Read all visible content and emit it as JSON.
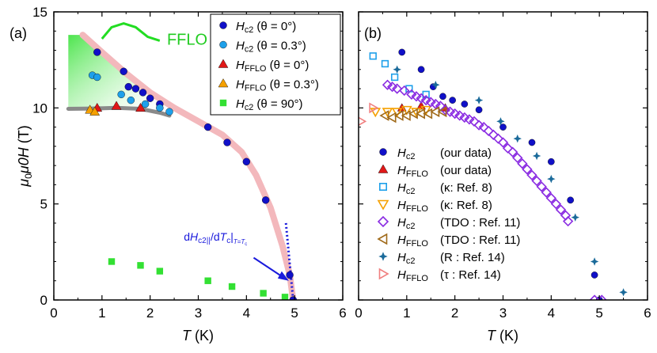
{
  "chart_data": [
    {
      "panel_label": "(a)",
      "type": "scatter",
      "xlabel_var": "T",
      "xlabel_unit": " (K)",
      "ylabel_var": "μ0H",
      "ylabel_unit": " (T)",
      "xlim": [
        0,
        6
      ],
      "ylim": [
        0,
        15
      ],
      "xticks": [
        0,
        1,
        2,
        3,
        4,
        5,
        6
      ],
      "yticks": [
        0,
        5,
        10,
        15
      ],
      "annotations": {
        "fflo_region": "FFLO",
        "slope": "dHc2||/dTc|T=Tc"
      },
      "legend_position": "top-right",
      "series": [
        {
          "name": "Hc2 (θ = 0°)",
          "marker": "circle",
          "color": "#1010c8",
          "x": [
            0.9,
            1.45,
            1.55,
            1.7,
            1.85,
            2.0,
            2.2,
            3.2,
            3.6,
            4.0,
            4.4,
            4.9,
            4.97
          ],
          "y": [
            12.9,
            11.9,
            11.1,
            11.0,
            10.8,
            10.5,
            10.2,
            9.0,
            8.2,
            7.2,
            5.2,
            1.3,
            0.0
          ]
        },
        {
          "name": "Hc2 (θ = 0.3°)",
          "marker": "circle",
          "color": "#1ea0ea",
          "x": [
            0.8,
            0.9,
            1.4,
            1.6,
            1.9,
            2.2,
            2.4
          ],
          "y": [
            11.7,
            11.6,
            10.7,
            10.4,
            10.2,
            10.0,
            9.8
          ]
        },
        {
          "name": "HFFLO (θ = 0°)",
          "marker": "triangle",
          "color": "#e01818",
          "x": [
            0.9,
            1.3,
            1.8
          ],
          "y": [
            10.0,
            10.1,
            10.0
          ]
        },
        {
          "name": "HFFLO (θ = 0.3°)",
          "marker": "triangle",
          "color": "#f5a000",
          "x": [
            0.75,
            0.85
          ],
          "y": [
            9.9,
            9.8
          ]
        },
        {
          "name": "Hc2 (θ = 90°)",
          "marker": "square",
          "color": "#33e033",
          "x": [
            1.2,
            1.8,
            2.2,
            3.2,
            3.7,
            4.35,
            4.8
          ],
          "y": [
            2.0,
            1.8,
            1.5,
            1.0,
            0.7,
            0.35,
            0.15
          ]
        }
      ],
      "legend": [
        {
          "sym": "H",
          "sub": "c2",
          "rest": " (θ = 0°)"
        },
        {
          "sym": "H",
          "sub": "c2",
          "rest": " (θ = 0.3°)"
        },
        {
          "sym": "H",
          "sub": "FFLO",
          "rest": " (θ = 0°)"
        },
        {
          "sym": "H",
          "sub": "FFLO",
          "rest": " (θ = 0.3°)"
        },
        {
          "sym": "H",
          "sub": "c2",
          "rest": " (θ = 90°)"
        }
      ]
    },
    {
      "panel_label": "(b)",
      "type": "scatter",
      "xlabel_var": "T",
      "xlabel_unit": " (K)",
      "xlim": [
        0,
        6
      ],
      "ylim": [
        0,
        15
      ],
      "xticks": [
        0,
        1,
        2,
        3,
        4,
        5,
        6
      ],
      "legend_position": "bottom-right",
      "series": [
        {
          "name": "Hc2 (our data)",
          "marker": "circle",
          "color": "#1010c8",
          "x": [
            0.9,
            1.3,
            1.55,
            1.75,
            1.95,
            2.2,
            2.5,
            3.0,
            3.6,
            4.0,
            4.4,
            4.9,
            5.0
          ],
          "y": [
            12.9,
            12.0,
            11.1,
            10.6,
            10.4,
            10.2,
            9.9,
            9.0,
            8.2,
            7.2,
            5.2,
            1.3,
            0.0
          ]
        },
        {
          "name": "HFFLO (our data)",
          "marker": "triangle",
          "color": "#e01818",
          "x": [
            0.9,
            1.3,
            1.8
          ],
          "y": [
            10.0,
            10.1,
            10.0
          ]
        },
        {
          "name": "Hc2 (κ: Ref. 8)",
          "marker": "square-open",
          "color": "#1ea0ea",
          "x": [
            0.3,
            0.55,
            0.75,
            1.05,
            1.4
          ],
          "y": [
            12.7,
            12.3,
            11.6,
            11.0,
            10.7
          ]
        },
        {
          "name": "HFFLO (κ: Ref. 8)",
          "marker": "triangle-down-open",
          "color": "#f5a000",
          "x": [
            0.35,
            0.6,
            0.8,
            1.0,
            1.2,
            1.4
          ],
          "y": [
            9.8,
            9.8,
            9.8,
            9.9,
            9.8,
            9.9
          ]
        },
        {
          "name": "Hc2 (TDO : Ref. 11)",
          "marker": "diamond-open",
          "color": "#8a2be2",
          "x": [
            0.6,
            0.7,
            0.8,
            0.95,
            1.1,
            1.2,
            1.3,
            1.4,
            1.5,
            1.6,
            1.7,
            1.8,
            1.9,
            2.0,
            2.1,
            2.2,
            2.3,
            2.4,
            2.5,
            2.6,
            2.7,
            2.8,
            2.9,
            3.0,
            3.1,
            3.2,
            3.3,
            3.4,
            3.5,
            3.6,
            3.7,
            3.8,
            3.9,
            4.0,
            4.1,
            4.2,
            4.3,
            4.35,
            4.9,
            5.05
          ],
          "y": [
            11.2,
            11.1,
            11.0,
            10.9,
            10.7,
            10.6,
            10.5,
            10.4,
            10.3,
            10.2,
            10.1,
            9.9,
            9.8,
            9.7,
            9.6,
            9.5,
            9.4,
            9.3,
            9.1,
            9.0,
            8.8,
            8.6,
            8.4,
            8.2,
            7.9,
            7.7,
            7.4,
            7.1,
            6.8,
            6.5,
            6.2,
            5.9,
            5.6,
            5.3,
            5.0,
            4.7,
            4.4,
            4.1,
            0.0,
            0.0
          ]
        },
        {
          "name": "HFFLO (TDO : Ref. 11)",
          "marker": "triangle-left-open",
          "color": "#a06a1a",
          "x": [
            0.55,
            0.7,
            0.85,
            1.0,
            1.15,
            1.3,
            1.45,
            1.6,
            1.75
          ],
          "y": [
            9.6,
            9.5,
            9.6,
            9.6,
            9.7,
            9.7,
            9.7,
            9.8,
            9.8
          ]
        },
        {
          "name": "Hc2 (R : Ref. 14)",
          "marker": "star4",
          "color": "#1a6a9a",
          "x": [
            0.8,
            1.6,
            2.5,
            2.95,
            3.3,
            3.7,
            4.0,
            4.5,
            4.9,
            5.5
          ],
          "y": [
            12.0,
            11.2,
            10.4,
            9.3,
            8.4,
            7.5,
            6.3,
            4.3,
            2.0,
            0.4
          ]
        },
        {
          "name": "HFFLO (τ : Ref. 14)",
          "marker": "triangle-right-open",
          "color": "#f08080",
          "x": [
            0.05,
            0.3
          ],
          "y": [
            9.3,
            10.0
          ]
        }
      ],
      "legend": [
        {
          "sym": "H",
          "sub": "c2",
          "rest": "(our data)"
        },
        {
          "sym": "H",
          "sub": "FFLO",
          "rest": "(our data)"
        },
        {
          "sym": "H",
          "sub": "c2",
          "rest": "(κ: Ref. 8)"
        },
        {
          "sym": "H",
          "sub": "FFLO",
          "rest": "(κ: Ref. 8)"
        },
        {
          "sym": "H",
          "sub": "c2",
          "rest": "(TDO : Ref. 11)"
        },
        {
          "sym": "H",
          "sub": "FFLO",
          "rest": "(TDO : Ref. 11)"
        },
        {
          "sym": "H",
          "sub": "c2",
          "rest": "(R : Ref. 14)"
        },
        {
          "sym": "H",
          "sub": "FFLO",
          "rest": "(τ  : Ref. 14)"
        }
      ]
    }
  ]
}
